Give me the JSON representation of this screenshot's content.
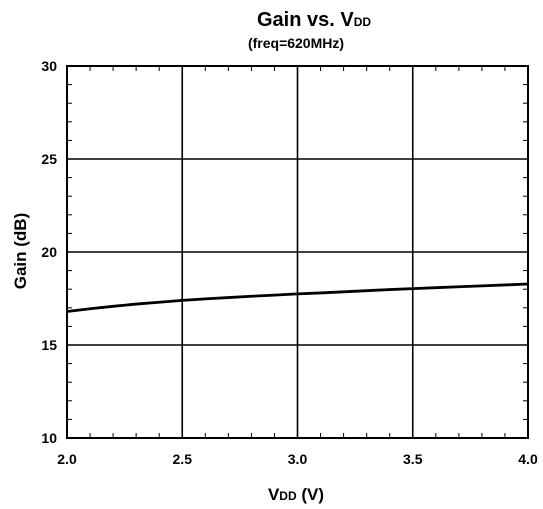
{
  "chart_data": {
    "type": "line",
    "title_main": "Gain vs. V",
    "title_sub": "DD",
    "subtitle": "(freq=620MHz)",
    "xlabel_main": "V",
    "xlabel_sub": "DD",
    "xlabel_unit": "(V)",
    "ylabel": "Gain (dB)",
    "xlim": [
      2.0,
      4.0
    ],
    "ylim": [
      10,
      30
    ],
    "x_ticks": [
      "2.0",
      "2.5",
      "3.0",
      "3.5",
      "4.0"
    ],
    "y_ticks": [
      "10",
      "15",
      "20",
      "25",
      "30"
    ],
    "grid": true,
    "series": [
      {
        "color": "#000000",
        "x": [
          2.0,
          2.1,
          2.2,
          2.3,
          2.4,
          2.5,
          2.6,
          2.7,
          2.8,
          2.9,
          3.0,
          3.1,
          3.2,
          3.3,
          3.4,
          3.5,
          3.6,
          3.7,
          3.8,
          3.9,
          4.0
        ],
        "y": [
          16.8,
          16.95,
          17.08,
          17.2,
          17.3,
          17.4,
          17.48,
          17.55,
          17.62,
          17.68,
          17.75,
          17.8,
          17.86,
          17.92,
          17.98,
          18.03,
          18.08,
          18.13,
          18.18,
          18.23,
          18.28
        ]
      }
    ]
  }
}
